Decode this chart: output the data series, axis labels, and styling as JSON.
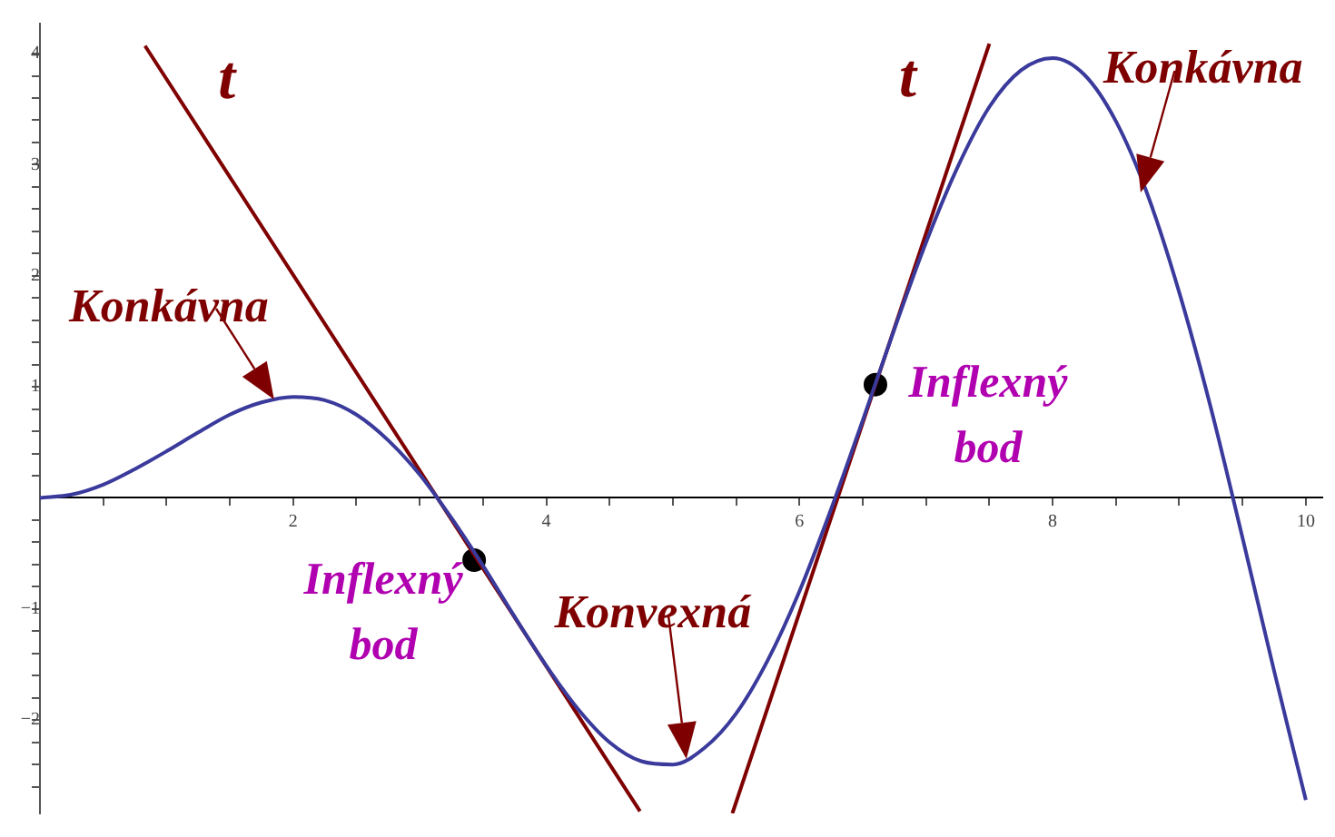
{
  "chart_data": {
    "type": "line",
    "xlim": [
      0,
      10.13
    ],
    "ylim": [
      -2.84,
      4.27
    ],
    "xticks": [
      {
        "value": 0.5,
        "label": null
      },
      {
        "value": 1,
        "label": null
      },
      {
        "value": 1.5,
        "label": null
      },
      2,
      {
        "value": 2.5,
        "label": null
      },
      {
        "value": 3,
        "label": null
      },
      {
        "value": 3.5,
        "label": null
      },
      4,
      {
        "value": 4.5,
        "label": null
      },
      {
        "value": 5,
        "label": null
      },
      {
        "value": 5.5,
        "label": null
      },
      6,
      {
        "value": 6.5,
        "label": null
      },
      {
        "value": 7,
        "label": null
      },
      {
        "value": 7.5,
        "label": null
      },
      8,
      {
        "value": 8.5,
        "label": null
      },
      {
        "value": 9,
        "label": null
      },
      {
        "value": 9.5,
        "label": null
      },
      10
    ],
    "yticks": [
      {
        "value": -2.6,
        "label": null
      },
      {
        "value": -2.4,
        "label": null
      },
      {
        "value": -2.2,
        "label": null
      },
      {
        "value": -2,
        "label": "−2"
      },
      {
        "value": -1.8,
        "label": null
      },
      {
        "value": -1.6,
        "label": null
      },
      {
        "value": -1.4,
        "label": null
      },
      {
        "value": -1.2,
        "label": null
      },
      {
        "value": -1,
        "label": "−1"
      },
      {
        "value": -0.8,
        "label": null
      },
      {
        "value": -0.6,
        "label": null
      },
      {
        "value": -0.4,
        "label": null
      },
      {
        "value": -0.2,
        "label": null
      },
      {
        "value": 0.2,
        "label": null
      },
      {
        "value": 0.4,
        "label": null
      },
      {
        "value": 0.6,
        "label": null
      },
      {
        "value": 0.8,
        "label": null
      },
      1,
      {
        "value": 1.2,
        "label": null
      },
      {
        "value": 1.4,
        "label": null
      },
      {
        "value": 1.6,
        "label": null
      },
      {
        "value": 1.8,
        "label": null
      },
      2,
      {
        "value": 2.2,
        "label": null
      },
      {
        "value": 2.4,
        "label": null
      },
      {
        "value": 2.6,
        "label": null
      },
      {
        "value": 2.8,
        "label": null
      },
      3,
      {
        "value": 3.2,
        "label": null
      },
      {
        "value": 3.4,
        "label": null
      },
      {
        "value": 3.6,
        "label": null
      },
      {
        "value": 3.8,
        "label": null
      },
      4
    ],
    "grid": false,
    "legend": false,
    "marker": "none",
    "line_style": "solid",
    "series": [
      {
        "color": "#3a3a9c",
        "x": [
          0,
          0.25,
          0.5,
          0.75,
          1,
          1.25,
          1.5,
          1.75,
          2,
          2.25,
          2.5,
          2.75,
          3,
          3.25,
          3.5,
          3.75,
          4,
          4.25,
          4.5,
          4.75,
          5,
          5.25,
          5.5,
          5.75,
          6,
          6.25,
          6.5,
          6.75,
          7,
          7.25,
          7.5,
          7.75,
          8,
          8.25,
          8.5,
          8.75,
          9,
          9.25,
          9.5,
          9.75,
          10
        ],
        "values": [
          0,
          0.03,
          0.12,
          0.26,
          0.42,
          0.59,
          0.75,
          0.86,
          0.91,
          0.88,
          0.75,
          0.52,
          0.21,
          -0.18,
          -0.61,
          -1.07,
          -1.51,
          -1.9,
          -2.2,
          -2.37,
          -2.4,
          -2.25,
          -1.94,
          -1.46,
          -0.84,
          -0.1,
          0.7,
          1.52,
          2.3,
          2.98,
          3.52,
          3.85,
          3.96,
          3.81,
          3.39,
          2.73,
          1.85,
          0.81,
          -0.36,
          -1.56,
          -2.72
        ]
      },
      {
        "name": "t",
        "color": "#7f0000",
        "x": [
          0.83,
          4.74
        ],
        "values": [
          4.07,
          -2.82
        ]
      },
      {
        "name": "t",
        "color": "#7f0000",
        "x": [
          5.47,
          7.5
        ],
        "values": [
          -2.84,
          4.09
        ]
      },
      {
        "type": "scatter",
        "color": "#000000",
        "marker": "circle",
        "x": [
          3.43,
          6.6
        ],
        "values": [
          -0.56,
          1.02
        ]
      }
    ],
    "annotations": [
      {
        "text": "Konkávna",
        "x": 1.85,
        "y": 0.88
      },
      {
        "text": "Konvexná",
        "x": 5.1,
        "y": -2.35
      },
      {
        "text": "Konkávna",
        "x": 8.7,
        "y": 2.75
      },
      {
        "text": "Inflexný bod",
        "x": 3.43,
        "y": -0.56
      },
      {
        "text": "Inflexný bod",
        "x": 6.6,
        "y": 1.02
      }
    ]
  }
}
